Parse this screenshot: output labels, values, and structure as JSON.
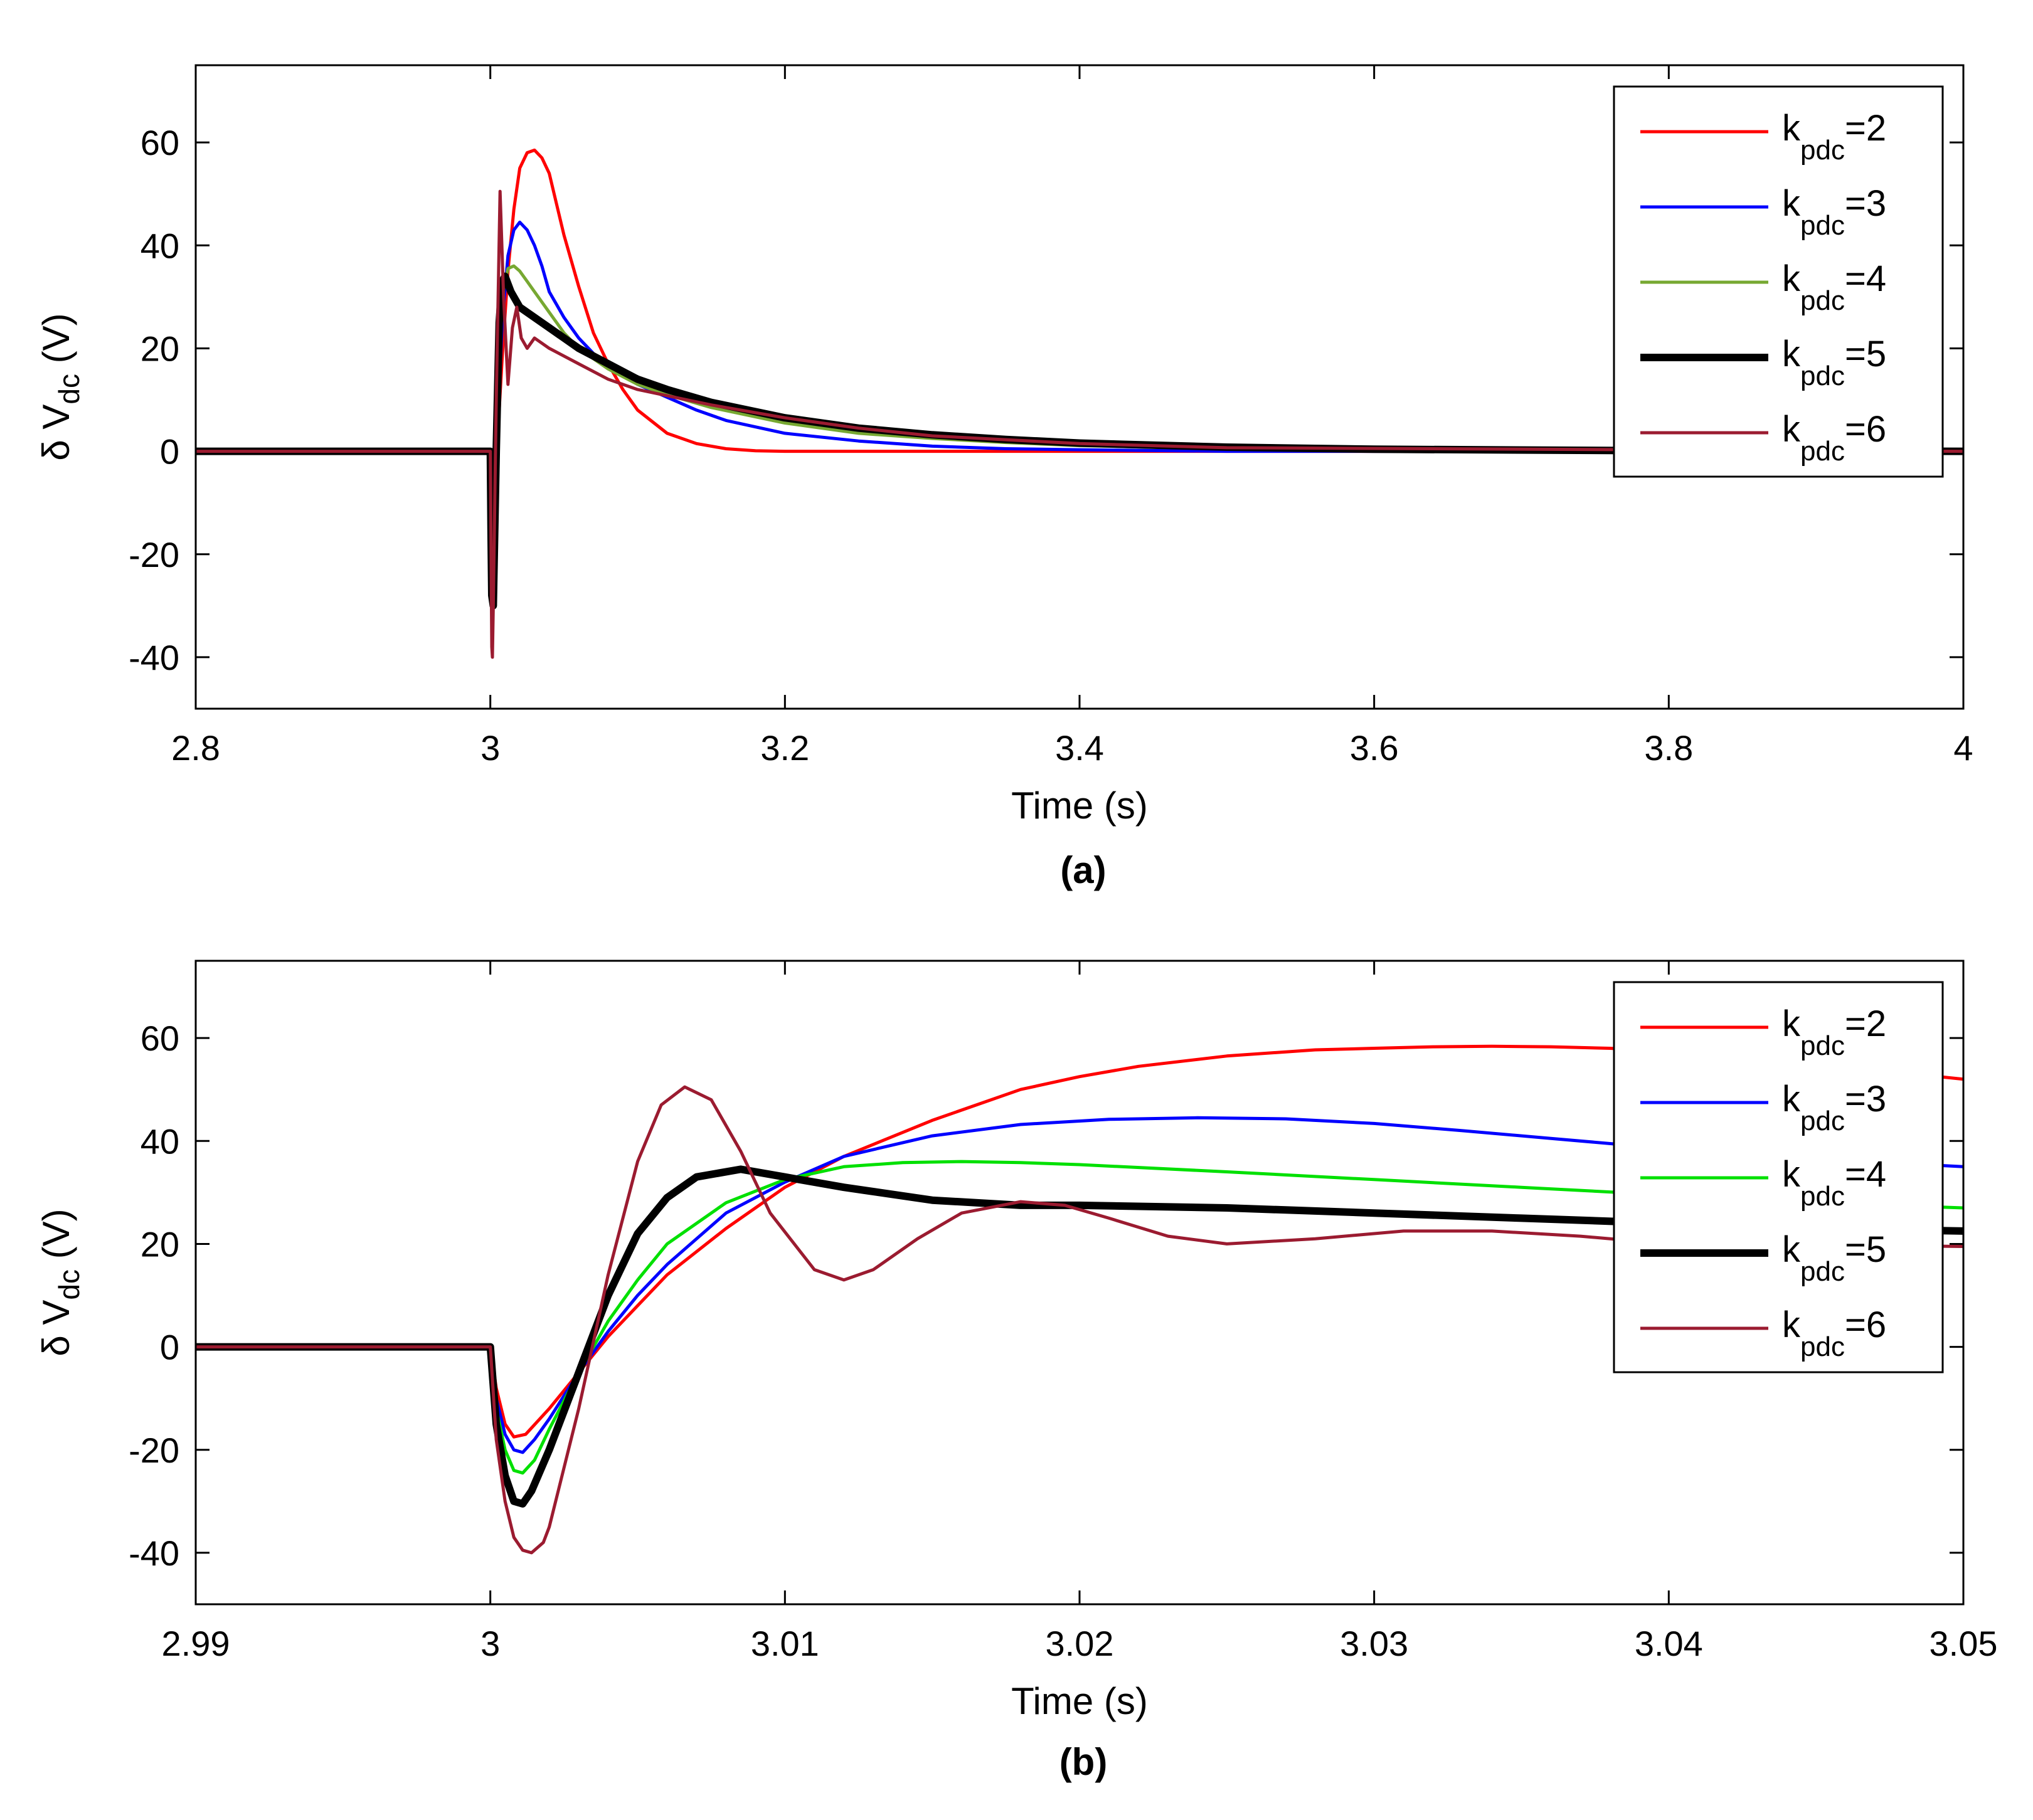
{
  "chart_data": [
    {
      "type": "line",
      "panel_label": "(a)",
      "xlabel": "Time (s)",
      "ylabel": {
        "main": "δ V",
        "sub": "dc",
        "unit": " (V)"
      },
      "xlim": [
        2.8,
        4.0
      ],
      "ylim": [
        -50,
        75
      ],
      "xticks": [
        2.8,
        3.0,
        3.2,
        3.4,
        3.6,
        3.8,
        4.0
      ],
      "xtick_labels": [
        "2.8",
        "3",
        "3.2",
        "3.4",
        "3.6",
        "3.8",
        "4"
      ],
      "yticks": [
        -40,
        -20,
        0,
        20,
        40,
        60
      ],
      "ytick_labels": [
        "-40",
        "-20",
        "0",
        "20",
        "40",
        "60"
      ],
      "legend_position": "top-right",
      "series": [
        {
          "name": "k_pdc=2",
          "label_main": "k",
          "label_sub": "pdc",
          "label_rest": "=2",
          "color": "#ff0000",
          "width": 5,
          "x": [
            2.8,
            3.0,
            3.0005,
            3.001,
            3.002,
            3.004,
            3.008,
            3.012,
            3.016,
            3.02,
            3.025,
            3.03,
            3.035,
            3.04,
            3.045,
            3.05,
            3.06,
            3.07,
            3.08,
            3.09,
            3.1,
            3.12,
            3.14,
            3.16,
            3.18,
            3.2,
            3.25,
            3.3,
            4.0
          ],
          "y": [
            0,
            0,
            -8,
            -15,
            -17,
            -2,
            18,
            35,
            47,
            55,
            58,
            58.5,
            57,
            54,
            48,
            42,
            32,
            23,
            17,
            12,
            8,
            3.5,
            1.5,
            0.5,
            0.1,
            0,
            0,
            0,
            0
          ]
        },
        {
          "name": "k_pdc=3",
          "label_main": "k",
          "label_sub": "pdc",
          "label_rest": "=3",
          "color": "#0000ff",
          "width": 5,
          "x": [
            2.8,
            3.0,
            3.0005,
            3.001,
            3.002,
            3.004,
            3.008,
            3.012,
            3.016,
            3.02,
            3.025,
            3.03,
            3.035,
            3.04,
            3.05,
            3.06,
            3.07,
            3.08,
            3.1,
            3.12,
            3.14,
            3.16,
            3.2,
            3.25,
            3.3,
            3.35,
            3.4,
            3.5,
            4.0
          ],
          "y": [
            0,
            0,
            -10,
            -18,
            -20,
            -2,
            25,
            38,
            43,
            44.5,
            43,
            40,
            36,
            31,
            26,
            22,
            19,
            16.5,
            13,
            10.5,
            8,
            6,
            3.5,
            2,
            1,
            0.5,
            0.3,
            0,
            0
          ]
        },
        {
          "name": "k_pdc=4",
          "label_main": "k",
          "label_sub": "pdc",
          "label_rest": "=4",
          "color": "#77a832",
          "width": 5,
          "x": [
            2.8,
            3.0,
            3.0005,
            3.001,
            3.002,
            3.004,
            3.008,
            3.012,
            3.016,
            3.02,
            3.025,
            3.03,
            3.04,
            3.05,
            3.06,
            3.07,
            3.08,
            3.1,
            3.12,
            3.15,
            3.2,
            3.25,
            3.3,
            3.35,
            3.4,
            3.5,
            3.6,
            4.0
          ],
          "y": [
            0,
            0,
            -12,
            -22,
            -24,
            0,
            30,
            35.5,
            36,
            35,
            33,
            31,
            27,
            23,
            20,
            18,
            16,
            13,
            11,
            8.5,
            5.5,
            3.5,
            2.5,
            1.7,
            1.1,
            0.5,
            0.2,
            0
          ]
        },
        {
          "name": "k_pdc=5",
          "label_main": "k",
          "label_sub": "pdc",
          "label_rest": "=5",
          "color": "#000000",
          "width": 12,
          "x": [
            2.8,
            3.0,
            3.0005,
            3.001,
            3.002,
            3.004,
            3.006,
            3.008,
            3.01,
            3.014,
            3.02,
            3.03,
            3.04,
            3.05,
            3.06,
            3.08,
            3.1,
            3.12,
            3.15,
            3.2,
            3.25,
            3.3,
            3.35,
            3.4,
            3.5,
            3.6,
            3.8,
            4.0
          ],
          "y": [
            0,
            0,
            -15,
            -28,
            -30,
            0,
            25,
            33,
            34,
            31,
            28,
            26,
            24,
            22,
            20,
            17,
            14,
            12,
            9.5,
            6.5,
            4.5,
            3.2,
            2.3,
            1.6,
            0.8,
            0.4,
            0.1,
            0
          ]
        },
        {
          "name": "k_pdc=6",
          "label_main": "k",
          "label_sub": "pdc",
          "label_rest": "=6",
          "color": "#9b1b30",
          "width": 5,
          "x": [
            2.8,
            3.0,
            3.0005,
            3.001,
            3.0014,
            3.002,
            3.004,
            3.0066,
            3.009,
            3.012,
            3.015,
            3.018,
            3.021,
            3.025,
            3.03,
            3.04,
            3.06,
            3.08,
            3.1,
            3.15,
            3.2,
            3.25,
            3.3,
            3.4,
            3.5,
            4.0
          ],
          "y": [
            0,
            0,
            -20,
            -38,
            -40,
            -30,
            10,
            50.5,
            30,
            13,
            24,
            28,
            22,
            20,
            22,
            20,
            17,
            14,
            12,
            9,
            6.5,
            4.5,
            3,
            1.5,
            0.7,
            0
          ]
        }
      ]
    },
    {
      "type": "line",
      "panel_label": "(b)",
      "xlabel": "Time (s)",
      "ylabel": {
        "main": "δ V",
        "sub": "dc",
        "unit": " (V)"
      },
      "xlim": [
        2.99,
        3.05
      ],
      "ylim": [
        -50,
        75
      ],
      "xticks": [
        2.99,
        3.0,
        3.01,
        3.02,
        3.03,
        3.04,
        3.05
      ],
      "xtick_labels": [
        "2.99",
        "3",
        "3.01",
        "3.02",
        "3.03",
        "3.04",
        "3.05"
      ],
      "yticks": [
        -40,
        -20,
        0,
        20,
        40,
        60
      ],
      "ytick_labels": [
        "-40",
        "-20",
        "0",
        "20",
        "40",
        "60"
      ],
      "legend_position": "top-right",
      "series": [
        {
          "name": "k_pdc=2",
          "label_main": "k",
          "label_sub": "pdc",
          "label_rest": "=2",
          "color": "#ff0000",
          "width": 5,
          "x": [
            2.99,
            3.0,
            3.0002,
            3.0005,
            3.0008,
            3.0012,
            3.002,
            3.003,
            3.004,
            3.005,
            3.006,
            3.008,
            3.01,
            3.012,
            3.015,
            3.018,
            3.02,
            3.022,
            3.025,
            3.028,
            3.03,
            3.032,
            3.034,
            3.036,
            3.038,
            3.04,
            3.045,
            3.05
          ],
          "y": [
            0,
            0,
            -8,
            -15,
            -17.5,
            -17,
            -12,
            -5,
            2,
            8,
            14,
            23,
            31,
            37,
            44,
            50,
            52.5,
            54.5,
            56.5,
            57.7,
            58,
            58.3,
            58.4,
            58.3,
            58,
            57.4,
            55,
            52
          ]
        },
        {
          "name": "k_pdc=3",
          "label_main": "k",
          "label_sub": "pdc",
          "label_rest": "=3",
          "color": "#0000ff",
          "width": 5,
          "x": [
            2.99,
            3.0,
            3.0002,
            3.0005,
            3.0008,
            3.0011,
            3.0015,
            3.002,
            3.003,
            3.004,
            3.005,
            3.006,
            3.008,
            3.01,
            3.012,
            3.015,
            3.018,
            3.021,
            3.024,
            3.027,
            3.03,
            3.033,
            3.036,
            3.04,
            3.045,
            3.05
          ],
          "y": [
            0,
            0,
            -10,
            -17,
            -20,
            -20.5,
            -18,
            -14,
            -5,
            3,
            10,
            16,
            26,
            32,
            37,
            41,
            43.2,
            44.2,
            44.5,
            44.3,
            43.4,
            42,
            40.5,
            38.5,
            36.5,
            35
          ]
        },
        {
          "name": "k_pdc=4",
          "label_main": "k",
          "label_sub": "pdc",
          "label_rest": "=4",
          "color": "#00e000",
          "width": 5,
          "x": [
            2.99,
            3.0,
            3.0002,
            3.0005,
            3.0008,
            3.0011,
            3.0015,
            3.002,
            3.003,
            3.004,
            3.005,
            3.006,
            3.008,
            3.01,
            3.012,
            3.014,
            3.016,
            3.018,
            3.02,
            3.025,
            3.03,
            3.035,
            3.04,
            3.045,
            3.05
          ],
          "y": [
            0,
            0,
            -12,
            -20,
            -24,
            -24.5,
            -22,
            -16,
            -5,
            5,
            13,
            20,
            28,
            32.5,
            35,
            35.8,
            36,
            35.8,
            35.4,
            34,
            32.5,
            31,
            29.5,
            28,
            27
          ]
        },
        {
          "name": "k_pdc=5",
          "label_main": "k",
          "label_sub": "pdc",
          "label_rest": "=5",
          "color": "#000000",
          "width": 12,
          "x": [
            2.99,
            3.0,
            3.0002,
            3.0005,
            3.0008,
            3.0011,
            3.0014,
            3.002,
            3.003,
            3.004,
            3.005,
            3.006,
            3.007,
            3.0085,
            3.01,
            3.012,
            3.015,
            3.018,
            3.02,
            3.025,
            3.03,
            3.035,
            3.04,
            3.045,
            3.05
          ],
          "y": [
            0,
            0,
            -15,
            -25,
            -30,
            -30.5,
            -28,
            -20,
            -5,
            10,
            22,
            29,
            33,
            34.5,
            33,
            31,
            28.5,
            27.5,
            27.5,
            27,
            26,
            25,
            24,
            23,
            22.5
          ]
        },
        {
          "name": "k_pdc=6",
          "label_main": "k",
          "label_sub": "pdc",
          "label_rest": "=6",
          "color": "#9b1b30",
          "width": 5,
          "x": [
            2.99,
            3.0,
            3.0002,
            3.0005,
            3.0008,
            3.0011,
            3.0014,
            3.0018,
            3.002,
            3.003,
            3.004,
            3.005,
            3.0058,
            3.0066,
            3.0075,
            3.0085,
            3.0095,
            3.011,
            3.012,
            3.013,
            3.0145,
            3.016,
            3.018,
            3.0195,
            3.021,
            3.023,
            3.025,
            3.028,
            3.031,
            3.034,
            3.037,
            3.04,
            3.045,
            3.05
          ],
          "y": [
            0,
            0,
            -18,
            -30,
            -37,
            -39.5,
            -40,
            -38,
            -35,
            -12,
            14,
            36,
            47,
            50.5,
            48,
            38,
            26,
            15,
            13,
            15,
            21,
            26,
            28.2,
            27.5,
            25,
            21.5,
            20,
            21,
            22.5,
            22.5,
            21.5,
            20,
            19.8,
            19.5
          ]
        }
      ]
    }
  ]
}
